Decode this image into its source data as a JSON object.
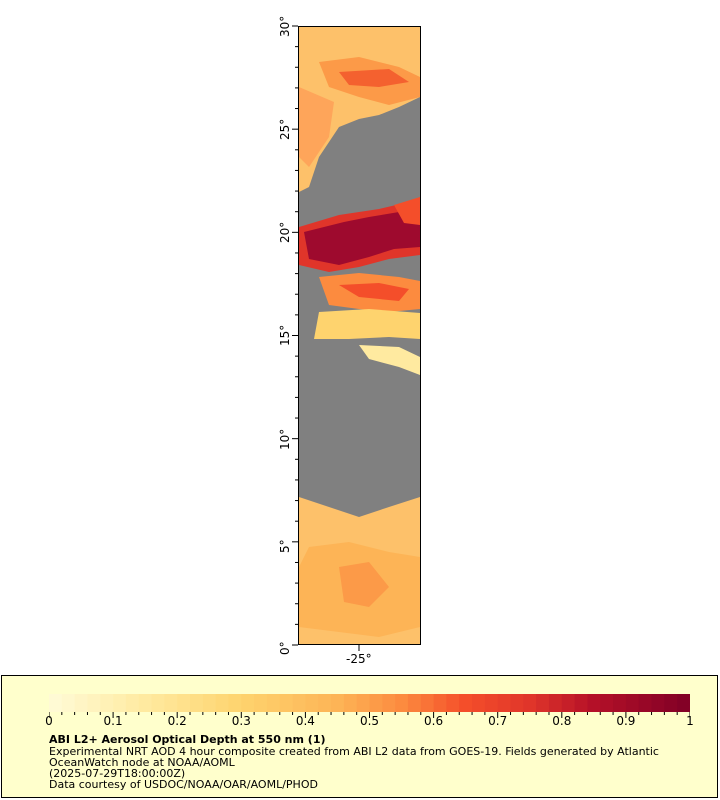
{
  "map": {
    "y_axis_labels": [
      "30°",
      "25°",
      "20°",
      "15°",
      "10°",
      "5°",
      "0°"
    ],
    "x_axis_labels": [
      "-25°"
    ],
    "background_color": "#808080",
    "aerosol_band_colors": [
      "#ffeaa0",
      "#fed36e",
      "#fdb456",
      "#fc8b3f",
      "#f44e2a",
      "#d61f27",
      "#9e0a2e",
      "#800026"
    ]
  },
  "legend": {
    "title": "ABI L2+ Aerosol Optical Depth at 550 nm (1)",
    "colorbar_labels": [
      "0",
      "0.1",
      "0.2",
      "0.3",
      "0.4",
      "0.5",
      "0.6",
      "0.7",
      "0.8",
      "0.9",
      "1"
    ],
    "colorbar_range": [
      0,
      1
    ],
    "line1": "Experimental NRT AOD 4 hour composite created from ABI L2 data from GOES-19. Fields generated by Atlantic",
    "line2": "OceanWatch node at NOAA/AOML",
    "line3": "(2025-07-29T18:00:00Z)",
    "line4": "Data courtesy of USDOC/NOAA/OAR/AOML/PHOD",
    "background_color": "#ffffcc"
  }
}
